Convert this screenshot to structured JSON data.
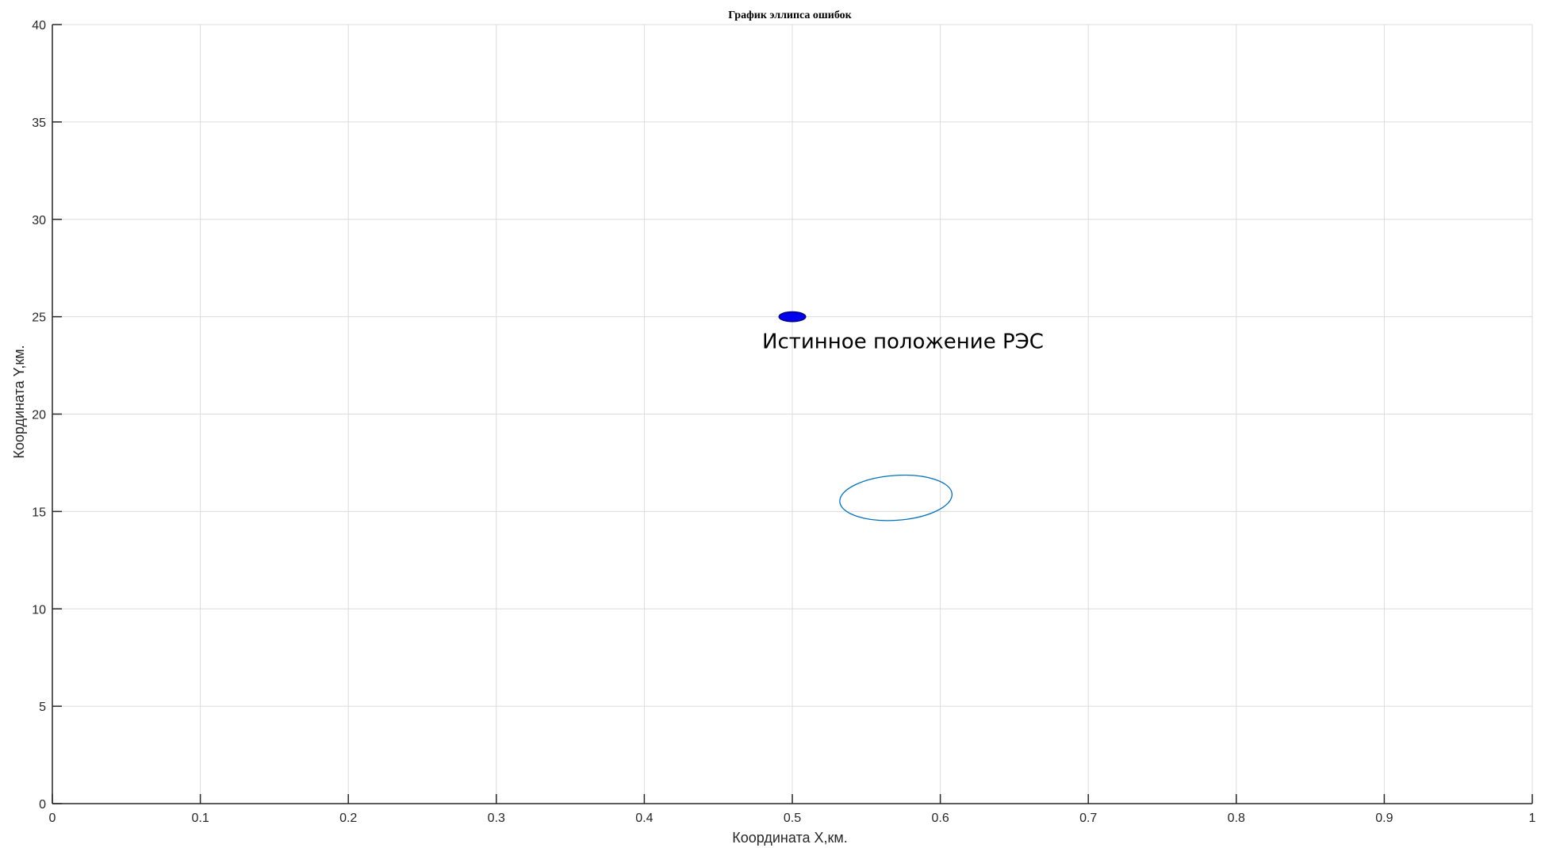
{
  "chart_data": {
    "type": "scatter",
    "title": "График эллипса ошибок",
    "xlabel": "Координата X,км.",
    "ylabel": "Координата Y,км.",
    "xlim": [
      0,
      1
    ],
    "ylim": [
      0,
      40
    ],
    "xticks": [
      "0",
      "0.1",
      "0.2",
      "0.3",
      "0.4",
      "0.5",
      "0.6",
      "0.7",
      "0.8",
      "0.9",
      "1"
    ],
    "yticks": [
      "0",
      "5",
      "10",
      "15",
      "20",
      "25",
      "30",
      "35",
      "40"
    ],
    "grid": true,
    "true_position": {
      "x": 0.5,
      "y": 25,
      "rx": 0.009,
      "ry": 0.25,
      "label": "Истинное положение РЭС"
    },
    "error_ellipse": {
      "cx": 0.57,
      "cy": 15.7,
      "rx": 0.038,
      "ry": 1.15,
      "rotation_deg": -4
    }
  },
  "colors": {
    "marker_fill": "#0000ee",
    "marker_stroke": "#000080",
    "ellipse_stroke": "#0072bd"
  }
}
